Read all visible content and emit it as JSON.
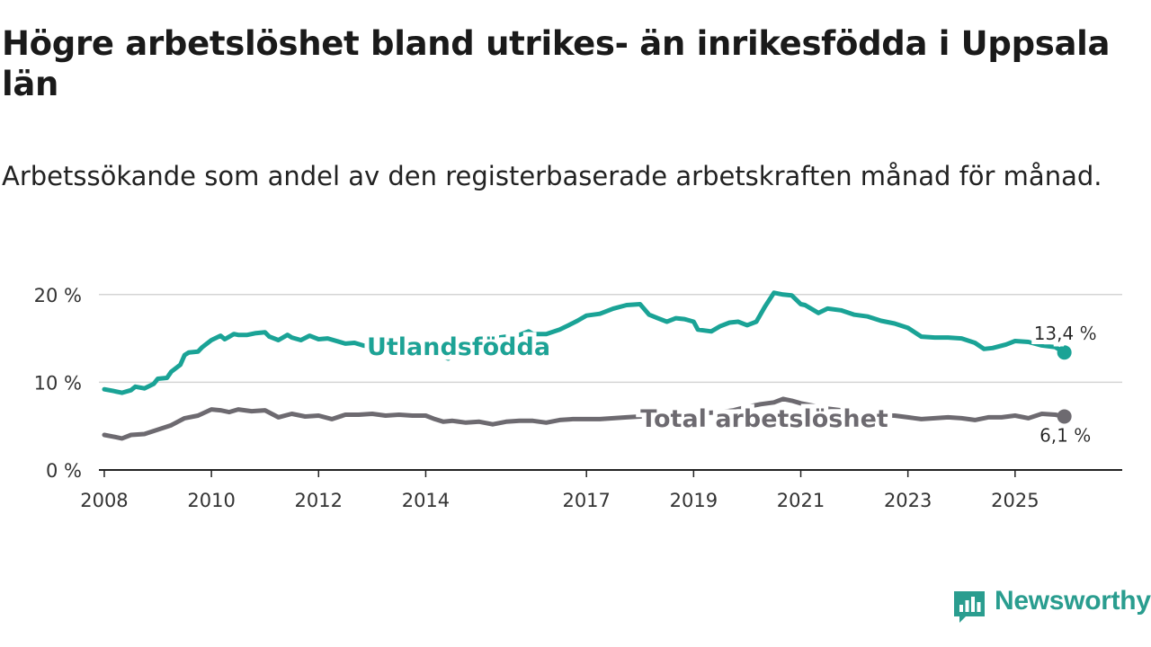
{
  "title": "Högre arbetslöshet bland utrikes- än inrikesfödda i Uppsala län",
  "subtitle": "Arbetssökande som andel av den registerbaserade arbetskraften månad för månad.",
  "brand": {
    "name": "Newsworthy",
    "color": "#2a9d8f",
    "icon": "newsworthy-logo-icon"
  },
  "chart_data": {
    "type": "line",
    "title": "Högre arbetslöshet bland utrikes- än inrikesfödda i Uppsala län",
    "subtitle": "Arbetssökande som andel av den registerbaserade arbetskraften månad för månad.",
    "xlabel": "",
    "ylabel": "",
    "x_ticks": [
      2008,
      2010,
      2012,
      2014,
      2017,
      2019,
      2021,
      2023,
      2025
    ],
    "x_tick_labels": [
      "2008",
      "2010",
      "2012",
      "2014",
      "2017",
      "2019",
      "2021",
      "2023",
      "2025"
    ],
    "y_ticks": [
      0,
      10,
      20
    ],
    "y_tick_labels": [
      "0 %",
      "10 %",
      "20 %"
    ],
    "xlim": [
      2007.9,
      2027.0
    ],
    "ylim": [
      0,
      21
    ],
    "grid": "horizontal",
    "series": [
      {
        "name": "Utlandsfödda",
        "color": "#1aa396",
        "end_label": "13,4 %",
        "x": [
          2008.0,
          2008.17,
          2008.33,
          2008.5,
          2008.58,
          2008.75,
          2008.92,
          2009.0,
          2009.17,
          2009.25,
          2009.42,
          2009.5,
          2009.58,
          2009.75,
          2009.83,
          2010.0,
          2010.17,
          2010.25,
          2010.42,
          2010.5,
          2010.67,
          2010.83,
          2011.0,
          2011.08,
          2011.25,
          2011.42,
          2011.5,
          2011.67,
          2011.83,
          2012.0,
          2012.17,
          2012.5,
          2012.67,
          2012.83,
          2013.0,
          2013.25,
          2013.5,
          2013.75,
          2014.0,
          2014.25,
          2014.42,
          2014.5,
          2014.75,
          2015.0,
          2015.25,
          2015.5,
          2015.75,
          2015.92,
          2016.0,
          2016.25,
          2016.5,
          2016.67,
          2016.83,
          2017.0,
          2017.25,
          2017.5,
          2017.75,
          2018.0,
          2018.17,
          2018.33,
          2018.5,
          2018.67,
          2018.83,
          2019.0,
          2019.08,
          2019.33,
          2019.5,
          2019.67,
          2019.83,
          2020.0,
          2020.17,
          2020.33,
          2020.5,
          2020.67,
          2020.83,
          2021.0,
          2021.08,
          2021.33,
          2021.5,
          2021.75,
          2022.0,
          2022.25,
          2022.5,
          2022.75,
          2023.0,
          2023.25,
          2023.5,
          2023.75,
          2024.0,
          2024.25,
          2024.42,
          2024.58,
          2024.83,
          2025.0,
          2025.25,
          2025.5,
          2025.75,
          2025.92
        ],
        "y": [
          9.2,
          9.0,
          8.8,
          9.1,
          9.5,
          9.3,
          9.8,
          10.4,
          10.5,
          11.2,
          12.0,
          13.1,
          13.4,
          13.5,
          14.0,
          14.8,
          15.3,
          14.9,
          15.5,
          15.4,
          15.4,
          15.6,
          15.7,
          15.2,
          14.8,
          15.4,
          15.1,
          14.8,
          15.3,
          14.9,
          15.0,
          14.4,
          14.5,
          14.2,
          14.0,
          13.8,
          13.7,
          13.5,
          13.3,
          13.1,
          12.7,
          13.3,
          14.0,
          14.6,
          15.0,
          15.2,
          15.4,
          15.8,
          15.5,
          15.5,
          16.0,
          16.5,
          17.0,
          17.6,
          17.8,
          18.4,
          18.8,
          18.9,
          17.7,
          17.3,
          16.9,
          17.3,
          17.2,
          16.9,
          16.0,
          15.8,
          16.4,
          16.8,
          16.9,
          16.5,
          16.9,
          18.6,
          20.2,
          20.0,
          19.9,
          18.9,
          18.8,
          17.9,
          18.4,
          18.2,
          17.7,
          17.5,
          17.0,
          16.7,
          16.2,
          15.2,
          15.1,
          15.1,
          15.0,
          14.5,
          13.8,
          13.9,
          14.3,
          14.7,
          14.6,
          14.2,
          14.0,
          13.4
        ]
      },
      {
        "name": "Total arbetslöshet",
        "color": "#6d6a70",
        "end_label": "6,1 %",
        "x": [
          2008.0,
          2008.17,
          2008.33,
          2008.5,
          2008.75,
          2009.0,
          2009.25,
          2009.5,
          2009.75,
          2010.0,
          2010.17,
          2010.33,
          2010.5,
          2010.75,
          2011.0,
          2011.25,
          2011.5,
          2011.75,
          2012.0,
          2012.25,
          2012.5,
          2012.75,
          2013.0,
          2013.25,
          2013.5,
          2013.75,
          2014.0,
          2014.17,
          2014.33,
          2014.5,
          2014.75,
          2015.0,
          2015.25,
          2015.5,
          2015.75,
          2016.0,
          2016.25,
          2016.5,
          2016.75,
          2017.0,
          2017.25,
          2017.5,
          2017.75,
          2018.0,
          2018.25,
          2018.5,
          2018.75,
          2019.0,
          2019.25,
          2019.5,
          2019.75,
          2020.0,
          2020.25,
          2020.5,
          2020.67,
          2020.83,
          2021.0,
          2021.25,
          2021.5,
          2021.75,
          2022.0,
          2022.25,
          2022.5,
          2022.75,
          2023.0,
          2023.25,
          2023.5,
          2023.75,
          2024.0,
          2024.25,
          2024.5,
          2024.75,
          2025.0,
          2025.25,
          2025.5,
          2025.75,
          2025.92
        ],
        "y": [
          4.0,
          3.8,
          3.6,
          4.0,
          4.1,
          4.6,
          5.1,
          5.9,
          6.2,
          6.9,
          6.8,
          6.6,
          6.9,
          6.7,
          6.8,
          6.0,
          6.4,
          6.1,
          6.2,
          5.8,
          6.3,
          6.3,
          6.4,
          6.2,
          6.3,
          6.2,
          6.2,
          5.8,
          5.5,
          5.6,
          5.4,
          5.5,
          5.2,
          5.5,
          5.6,
          5.6,
          5.4,
          5.7,
          5.8,
          5.8,
          5.8,
          5.9,
          6.0,
          6.1,
          6.2,
          6.2,
          6.3,
          6.4,
          6.5,
          6.6,
          6.8,
          7.2,
          7.5,
          7.7,
          8.1,
          7.9,
          7.6,
          7.3,
          7.0,
          6.8,
          6.6,
          6.4,
          6.2,
          6.2,
          6.0,
          5.8,
          5.9,
          6.0,
          5.9,
          5.7,
          6.0,
          6.0,
          6.2,
          5.9,
          6.4,
          6.3,
          6.1
        ]
      }
    ]
  }
}
